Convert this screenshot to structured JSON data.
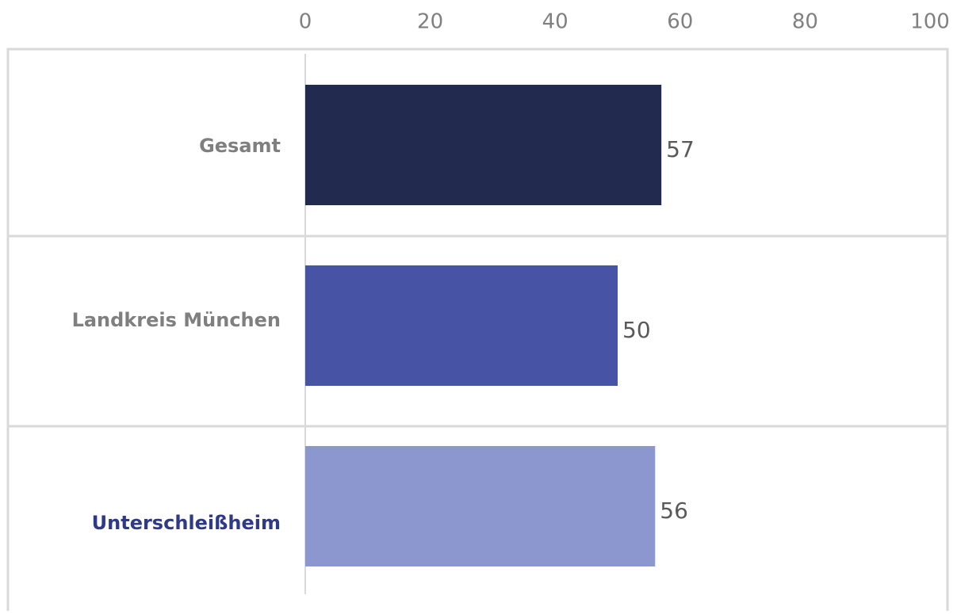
{
  "chart_data": {
    "type": "barh",
    "categories": [
      "Gesamt",
      "Landkreis München",
      "Unterschleißheim"
    ],
    "category_colors": [
      "#7f7f7f",
      "#7f7f7f",
      "#2e3a87"
    ],
    "values": [
      57,
      50,
      56
    ],
    "colors": [
      "#232a50",
      "#4754a6",
      "#8c97cf"
    ],
    "xlim": [
      0,
      100
    ],
    "xticks": [
      0,
      20,
      40,
      60,
      80,
      100
    ]
  }
}
